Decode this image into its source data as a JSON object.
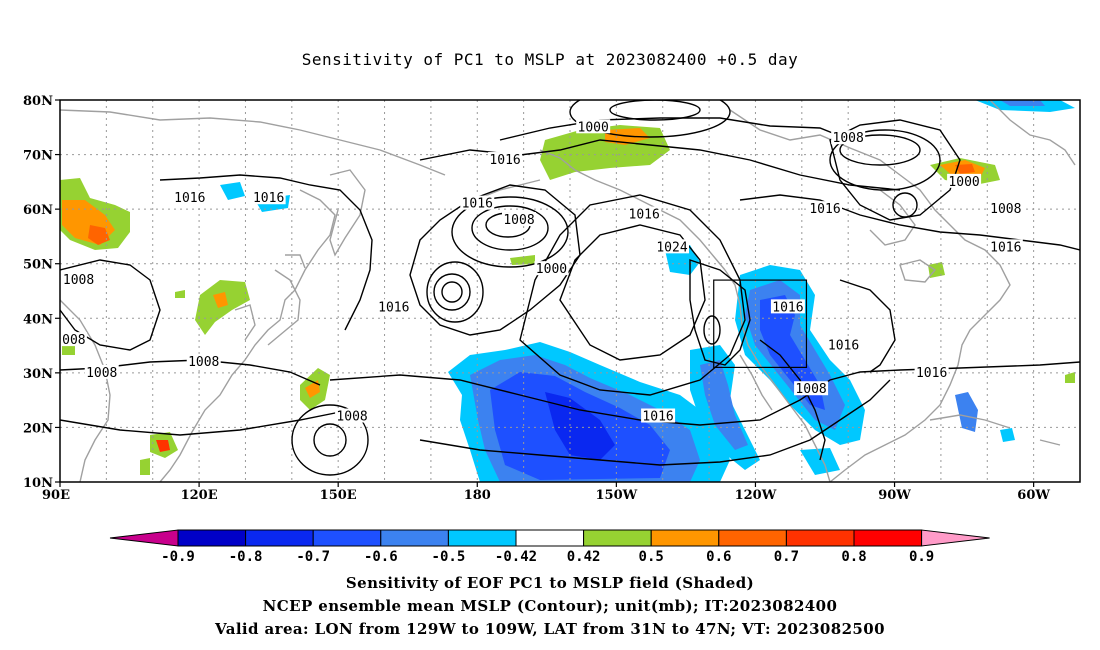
{
  "title": "Sensitivity of PC1 to MSLP at 2023082400 +0.5 day",
  "captions": [
    "Sensitivity of EOF PC1 to MSLP field (Shaded)",
    "NCEP ensemble mean MSLP (Contour); unit(mb); IT:2023082400",
    "Valid area: LON from 129W to 109W, LAT from 31N to 47N; VT: 2023082500"
  ],
  "axes": {
    "lat_labels": [
      "80N",
      "70N",
      "60N",
      "50N",
      "40N",
      "30N",
      "20N",
      "10N"
    ],
    "lon_labels": [
      "90E",
      "120E",
      "150E",
      "180",
      "150W",
      "120W",
      "90W",
      "60W"
    ]
  },
  "contour_labels": [
    {
      "text": "1000",
      "lon": -155,
      "lat": 75
    },
    {
      "text": "1008",
      "lon": -100,
      "lat": 73
    },
    {
      "text": "1016",
      "lon": -174,
      "lat": 69
    },
    {
      "text": "1016",
      "lon": 118,
      "lat": 62
    },
    {
      "text": "1016",
      "lon": 135,
      "lat": 62
    },
    {
      "text": "1016",
      "lon": -180,
      "lat": 61
    },
    {
      "text": "1008",
      "lon": -171,
      "lat": 58
    },
    {
      "text": "1016",
      "lon": -144,
      "lat": 59
    },
    {
      "text": "1016",
      "lon": -105,
      "lat": 60
    },
    {
      "text": "1000",
      "lon": -75,
      "lat": 65
    },
    {
      "text": "1008",
      "lon": -66,
      "lat": 60
    },
    {
      "text": "1024",
      "lon": -138,
      "lat": 53
    },
    {
      "text": "1000",
      "lon": -164,
      "lat": 49
    },
    {
      "text": "1016",
      "lon": -66,
      "lat": 53
    },
    {
      "text": "1008",
      "lon": 94,
      "lat": 47
    },
    {
      "text": "1016",
      "lon": 162,
      "lat": 42
    },
    {
      "text": "1016",
      "lon": -113,
      "lat": 42
    },
    {
      "text": "008",
      "lon": 93,
      "lat": 36
    },
    {
      "text": "1016",
      "lon": -101,
      "lat": 35
    },
    {
      "text": "1008",
      "lon": 99,
      "lat": 30
    },
    {
      "text": "1008",
      "lon": 121,
      "lat": 32
    },
    {
      "text": "1016",
      "lon": -82,
      "lat": 30
    },
    {
      "text": "1008",
      "lon": -108,
      "lat": 27
    },
    {
      "text": "1008",
      "lon": 153,
      "lat": 22
    },
    {
      "text": "1016",
      "lon": -141,
      "lat": 22
    }
  ],
  "valid_area": {
    "lon_min": -129,
    "lon_max": -109,
    "lat_min": 31,
    "lat_max": 47
  },
  "colorbar": {
    "labels": [
      "-0.9",
      "-0.8",
      "-0.7",
      "-0.6",
      "-0.5",
      "-0.42",
      "0.42",
      "0.5",
      "0.6",
      "0.7",
      "0.8",
      "0.9"
    ],
    "colors": [
      "#0000c8",
      "#0a28f0",
      "#1e50ff",
      "#3c82f0",
      "#00c8ff",
      "#ffffff",
      "#96d232",
      "#ff9600",
      "#ff6400",
      "#ff3200",
      "#ff0000"
    ],
    "under_color": "#c8008c",
    "over_color": "#ff9bc8"
  },
  "colors": {
    "contour": "#000000",
    "coast": "#a0a0a0",
    "grid": "#999999"
  }
}
